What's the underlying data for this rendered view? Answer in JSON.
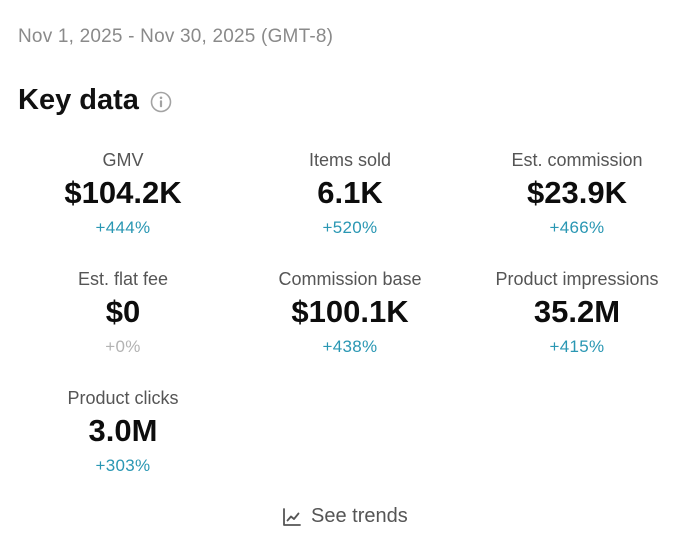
{
  "date_range": "Nov 1, 2025 - Nov 30, 2025 (GMT-8)",
  "section": {
    "title": "Key data",
    "info_icon": "info-circle-icon"
  },
  "metrics": [
    {
      "label": "GMV",
      "value": "$104.2K",
      "change": "+444%"
    },
    {
      "label": "Items sold",
      "value": "6.1K",
      "change": "+520%"
    },
    {
      "label": "Est. commission",
      "value": "$23.9K",
      "change": "+466%"
    },
    {
      "label": "Est. flat fee",
      "value": "$0",
      "change": "+0%"
    },
    {
      "label": "Commission base",
      "value": "$100.1K",
      "change": "+438%"
    },
    {
      "label": "Product impressions",
      "value": "35.2M",
      "change": "+415%"
    },
    {
      "label": "Product clicks",
      "value": "3.0M",
      "change": "+303%"
    }
  ],
  "trends": {
    "label": "See trends",
    "icon": "line-chart-icon"
  },
  "colors": {
    "positive_change": "#2a97b3",
    "neutral_change": "#b3b3b3",
    "muted_text": "#8a8a8a"
  }
}
